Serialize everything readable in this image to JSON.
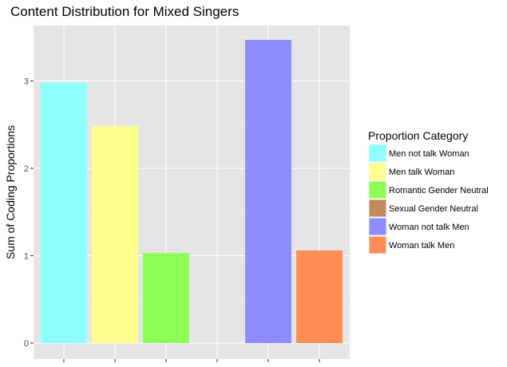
{
  "chart_data": {
    "type": "bar",
    "title": "Content Distribution for Mixed Singers",
    "xlabel": "",
    "ylabel": "Sum of Coding Proportions",
    "ylim": [
      0,
      3.6
    ],
    "yticks": [
      0,
      1,
      2,
      3
    ],
    "grid": true,
    "legend": {
      "title": "Proportion Category",
      "placement": "right"
    },
    "series": [
      {
        "name": "Men not talk Woman",
        "value": 2.98,
        "color": "#8dffff"
      },
      {
        "name": "Men talk Woman",
        "value": 2.48,
        "color": "#ffff8d"
      },
      {
        "name": "Romantic Gender Neutral",
        "value": 1.03,
        "color": "#8dff55"
      },
      {
        "name": "Sexual Gender Neutral",
        "value": 0,
        "color": "#c4895a"
      },
      {
        "name": "Woman not talk Men",
        "value": 3.47,
        "color": "#8d8dff"
      },
      {
        "name": "Woman talk Men",
        "value": 1.06,
        "color": "#ff8d55"
      }
    ]
  }
}
